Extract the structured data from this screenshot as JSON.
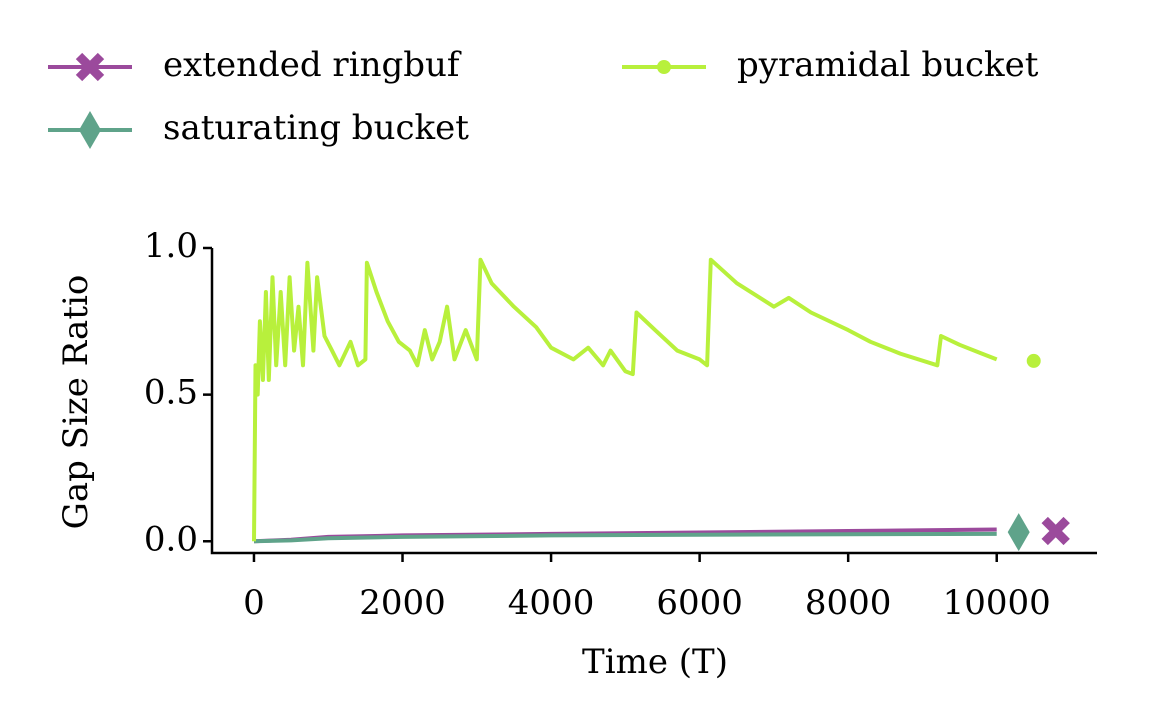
{
  "chart_data": {
    "type": "line",
    "xlabel": "Time (T)",
    "ylabel": "Gap Size Ratio",
    "xlim": [
      -565,
      11350
    ],
    "ylim": [
      -0.04,
      1.0
    ],
    "xticks": [
      0,
      2000,
      4000,
      6000,
      8000,
      10000
    ],
    "yticks": [
      {
        "value": 0,
        "label": "0.0"
      },
      {
        "value": 0.5,
        "label": "0.5"
      },
      {
        "value": 1,
        "label": "1.0"
      }
    ],
    "legend": "top",
    "series": [
      {
        "name": "extended ringbuf",
        "color": "#9b4a9c",
        "marker": "X",
        "x": [
          0,
          500,
          1000,
          2000,
          4000,
          6000,
          8000,
          10000
        ],
        "values": [
          0,
          0.005,
          0.015,
          0.02,
          0.025,
          0.03,
          0.035,
          0.04
        ],
        "end_marker": {
          "x": 10794,
          "y": 0.035
        }
      },
      {
        "name": "saturating bucket",
        "color": "#5fa38a",
        "marker": "diamond",
        "x": [
          0,
          500,
          1000,
          2000,
          4000,
          6000,
          8000,
          10000
        ],
        "values": [
          0,
          0.003,
          0.01,
          0.015,
          0.02,
          0.022,
          0.024,
          0.025
        ],
        "end_marker": {
          "x": 10296,
          "y": 0.031
        }
      },
      {
        "name": "pyramidal bucket",
        "color": "#b8f03c",
        "marker": "dot",
        "x": [
          0,
          20,
          50,
          80,
          120,
          160,
          200,
          250,
          300,
          360,
          420,
          480,
          540,
          600,
          660,
          720,
          800,
          850,
          950,
          1050,
          1150,
          1300,
          1400,
          1500,
          1520,
          1650,
          1800,
          1950,
          2100,
          2200,
          2300,
          2400,
          2500,
          2600,
          2700,
          2850,
          3000,
          3050,
          3200,
          3500,
          3800,
          4000,
          4300,
          4500,
          4700,
          4800,
          5000,
          5100,
          5150,
          5400,
          5700,
          6000,
          6100,
          6150,
          6500,
          7000,
          7200,
          7500,
          8000,
          8300,
          8700,
          9200,
          9250,
          9500,
          9800,
          10000
        ],
        "values": [
          0,
          0.6,
          0.5,
          0.75,
          0.55,
          0.85,
          0.55,
          0.9,
          0.6,
          0.85,
          0.6,
          0.9,
          0.65,
          0.8,
          0.6,
          0.95,
          0.65,
          0.9,
          0.7,
          0.65,
          0.6,
          0.68,
          0.6,
          0.62,
          0.95,
          0.85,
          0.75,
          0.68,
          0.65,
          0.6,
          0.72,
          0.62,
          0.68,
          0.8,
          0.62,
          0.72,
          0.62,
          0.96,
          0.88,
          0.8,
          0.73,
          0.66,
          0.62,
          0.66,
          0.6,
          0.65,
          0.58,
          0.57,
          0.78,
          0.72,
          0.65,
          0.62,
          0.6,
          0.96,
          0.88,
          0.8,
          0.83,
          0.78,
          0.72,
          0.68,
          0.64,
          0.6,
          0.7,
          0.67,
          0.64,
          0.62
        ],
        "end_marker": {
          "x": 10498,
          "y": 0.615
        }
      }
    ]
  }
}
